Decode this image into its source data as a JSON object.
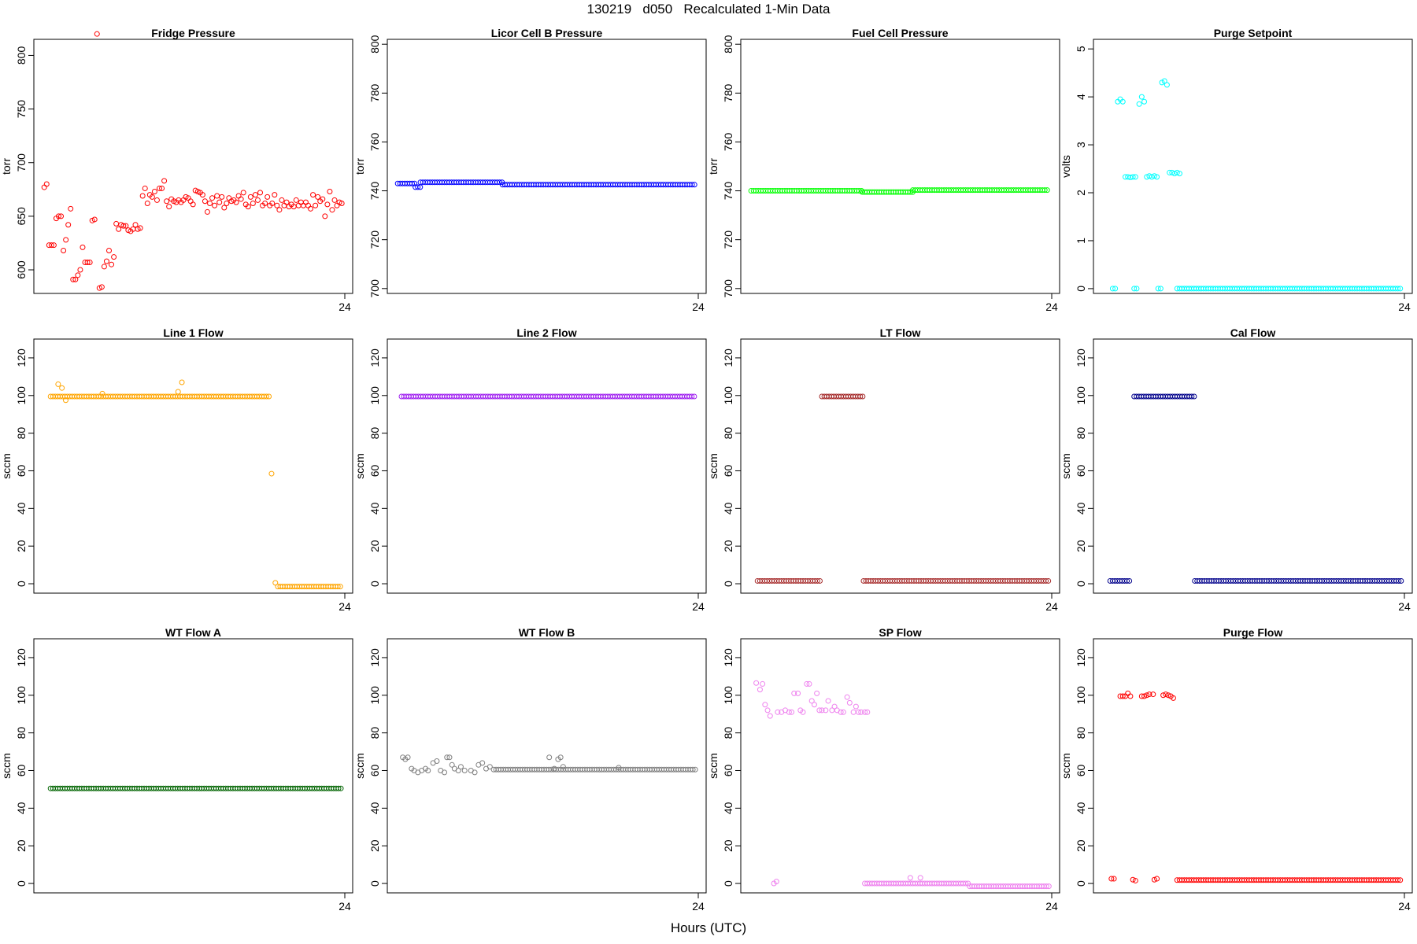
{
  "header": {
    "title": "130219   d050   Recalculated 1-Min Data",
    "xlabel": "Hours (UTC)"
  },
  "chart_data": [
    {
      "type": "scatter",
      "title": "Fridge Pressure",
      "ylabel": "torr",
      "ylim": [
        578,
        815
      ],
      "yticks": [
        600,
        650,
        700,
        750,
        800
      ],
      "xlim": [
        0,
        24
      ],
      "xticks": [
        "24"
      ],
      "color": "#ff0000",
      "x_step": 0.2,
      "x_start": 0.2,
      "values": [
        677,
        680,
        623,
        623,
        623,
        648,
        650,
        650,
        618,
        628,
        642,
        657,
        591,
        591,
        595,
        600,
        621,
        607,
        607,
        607,
        646,
        647,
        820,
        583,
        584,
        603,
        608,
        618,
        605,
        612,
        643,
        638,
        642,
        641,
        641,
        637,
        636,
        638,
        642,
        638,
        639,
        669,
        676,
        662,
        670,
        668,
        673,
        665,
        676,
        676,
        683,
        664,
        659,
        666,
        664,
        663,
        665,
        663,
        665,
        668,
        667,
        664,
        661,
        674,
        673,
        672,
        670,
        664,
        654,
        662,
        667,
        660,
        669,
        663,
        668,
        658,
        662,
        667,
        664,
        665,
        663,
        669,
        666,
        672,
        661,
        659,
        668,
        662,
        670,
        665,
        672,
        660,
        662,
        668,
        660,
        662,
        670,
        660,
        656,
        665,
        660,
        663,
        659,
        661,
        659,
        665,
        660,
        663,
        660,
        663,
        660,
        657,
        670,
        660,
        668,
        664,
        666,
        650,
        661,
        673,
        656,
        665,
        660,
        663,
        662
      ],
      "series_name": ""
    },
    {
      "type": "scatter",
      "title": "Licor Cell B Pressure",
      "ylabel": "torr",
      "ylim": [
        698,
        802
      ],
      "yticks": [
        700,
        720,
        740,
        760,
        780,
        800
      ],
      "xlim": [
        0,
        24
      ],
      "xticks": [
        "24"
      ],
      "color": "#0000ff",
      "x_step": 0.2,
      "x_start": 0.2,
      "segments": [
        [
          0.2,
          1.6,
          743
        ],
        [
          1.6,
          2.0,
          741.5
        ],
        [
          2.0,
          8.5,
          743.5
        ],
        [
          8.5,
          23.8,
          742.5
        ]
      ]
    },
    {
      "type": "scatter",
      "title": "Fuel Cell Pressure",
      "ylabel": "torr",
      "ylim": [
        698,
        802
      ],
      "yticks": [
        700,
        720,
        740,
        760,
        780,
        800
      ],
      "xlim": [
        0,
        24
      ],
      "xticks": [
        "24"
      ],
      "color": "#00ff00",
      "x_step": 0.2,
      "x_start": 0.2,
      "segments": [
        [
          0.2,
          9.0,
          740
        ],
        [
          9.0,
          13.0,
          739.5
        ],
        [
          13.0,
          23.8,
          740.3
        ]
      ]
    },
    {
      "type": "scatter",
      "title": "Purge Setpoint",
      "ylabel": "volts",
      "ylim": [
        -0.1,
        5.2
      ],
      "yticks": [
        0,
        1,
        2,
        3,
        4,
        5
      ],
      "xlim": [
        0,
        24
      ],
      "xticks": [
        "24"
      ],
      "color": "#00ffff",
      "points": [
        [
          0.9,
          0
        ],
        [
          1.1,
          0
        ],
        [
          1.3,
          3.9
        ],
        [
          1.5,
          3.95
        ],
        [
          1.7,
          3.9
        ],
        [
          1.9,
          2.33
        ],
        [
          2.1,
          2.33
        ],
        [
          2.3,
          2.32
        ],
        [
          2.5,
          2.33
        ],
        [
          2.7,
          2.33
        ],
        [
          2.6,
          0
        ],
        [
          2.8,
          0
        ],
        [
          3.0,
          3.85
        ],
        [
          3.2,
          4.0
        ],
        [
          3.4,
          3.9
        ],
        [
          3.6,
          2.33
        ],
        [
          3.8,
          2.35
        ],
        [
          4.0,
          2.33
        ],
        [
          4.2,
          2.35
        ],
        [
          4.4,
          2.33
        ],
        [
          4.5,
          0
        ],
        [
          4.7,
          0
        ],
        [
          4.8,
          4.3
        ],
        [
          5.0,
          4.33
        ],
        [
          5.2,
          4.25
        ],
        [
          5.4,
          2.42
        ],
        [
          5.6,
          2.42
        ],
        [
          5.8,
          2.4
        ],
        [
          6.0,
          2.42
        ],
        [
          6.2,
          2.4
        ]
      ],
      "segments": [
        [
          6.0,
          23.8,
          0
        ]
      ]
    },
    {
      "type": "scatter",
      "title": "Line 1 Flow",
      "ylabel": "sccm",
      "ylim": [
        -5,
        130
      ],
      "yticks": [
        0,
        20,
        40,
        60,
        80,
        100,
        120
      ],
      "xlim": [
        0,
        24
      ],
      "xticks": [
        "24"
      ],
      "color": "#ffa500",
      "points": [
        [
          1.3,
          106
        ],
        [
          1.6,
          104
        ],
        [
          1.9,
          97.5
        ],
        [
          4.8,
          101
        ],
        [
          10.8,
          102
        ],
        [
          11.1,
          107
        ],
        [
          18.2,
          58.5
        ],
        [
          18.5,
          0.5
        ]
      ],
      "segments": [
        [
          0.7,
          18.0,
          99.5
        ],
        [
          18.7,
          23.8,
          -1.5
        ]
      ]
    },
    {
      "type": "scatter",
      "title": "Line 2 Flow",
      "ylabel": "sccm",
      "ylim": [
        -5,
        130
      ],
      "yticks": [
        0,
        20,
        40,
        60,
        80,
        100,
        120
      ],
      "xlim": [
        0,
        24
      ],
      "xticks": [
        "24"
      ],
      "color": "#a020f0",
      "segments": [
        [
          0.5,
          23.8,
          99.5
        ]
      ]
    },
    {
      "type": "scatter",
      "title": "LT Flow",
      "ylabel": "sccm",
      "ylim": [
        -5,
        130
      ],
      "yticks": [
        0,
        20,
        40,
        60,
        80,
        100,
        120
      ],
      "xlim": [
        0,
        24
      ],
      "xticks": [
        "24"
      ],
      "color": "#a52a2a",
      "segments": [
        [
          0.7,
          5.8,
          1.5
        ],
        [
          5.8,
          9.2,
          99.5
        ],
        [
          9.1,
          23.8,
          1.5
        ]
      ]
    },
    {
      "type": "scatter",
      "title": "Cal Flow",
      "ylabel": "sccm",
      "ylim": [
        -5,
        130
      ],
      "yticks": [
        0,
        20,
        40,
        60,
        80,
        100,
        120
      ],
      "xlim": [
        0,
        24
      ],
      "xticks": [
        "24"
      ],
      "color": "#00008b",
      "segments": [
        [
          0.7,
          2.4,
          1.5
        ],
        [
          2.6,
          7.4,
          99.5
        ],
        [
          7.4,
          23.8,
          1.5
        ]
      ]
    },
    {
      "type": "scatter",
      "title": "WT Flow A",
      "ylabel": "sccm",
      "ylim": [
        -5,
        130
      ],
      "yticks": [
        0,
        20,
        40,
        60,
        80,
        100,
        120
      ],
      "xlim": [
        0,
        24
      ],
      "xticks": [
        "24"
      ],
      "color": "#006400",
      "segments": [
        [
          0.7,
          23.8,
          50.5
        ]
      ]
    },
    {
      "type": "scatter",
      "title": "WT Flow B",
      "ylabel": "sccm",
      "ylim": [
        -5,
        130
      ],
      "yticks": [
        0,
        20,
        40,
        60,
        80,
        100,
        120
      ],
      "xlim": [
        0,
        24
      ],
      "xticks": [
        "24"
      ],
      "color": "#808080",
      "points": [
        [
          0.6,
          67
        ],
        [
          0.8,
          66
        ],
        [
          1.0,
          67
        ],
        [
          1.3,
          61
        ],
        [
          1.5,
          60
        ],
        [
          1.8,
          59
        ],
        [
          2.1,
          60
        ],
        [
          2.4,
          61
        ],
        [
          2.6,
          60
        ],
        [
          3.0,
          64
        ],
        [
          3.3,
          65
        ],
        [
          3.6,
          60
        ],
        [
          3.9,
          59
        ],
        [
          4.1,
          67
        ],
        [
          4.3,
          67
        ],
        [
          4.5,
          63
        ],
        [
          4.7,
          61
        ],
        [
          5.0,
          60
        ],
        [
          5.2,
          62
        ],
        [
          5.5,
          60
        ],
        [
          6.0,
          60
        ],
        [
          6.3,
          59
        ],
        [
          6.6,
          63
        ],
        [
          6.9,
          64
        ],
        [
          7.2,
          61
        ],
        [
          7.5,
          62
        ],
        [
          12.2,
          67
        ],
        [
          12.6,
          61
        ],
        [
          12.9,
          66
        ],
        [
          13.1,
          67
        ],
        [
          13.3,
          62
        ],
        [
          17.7,
          61.5
        ]
      ],
      "segments": [
        [
          7.8,
          23.8,
          60.5
        ]
      ]
    },
    {
      "type": "scatter",
      "title": "SP Flow",
      "ylabel": "sccm",
      "ylim": [
        -5,
        130
      ],
      "yticks": [
        0,
        20,
        40,
        60,
        80,
        100,
        120
      ],
      "xlim": [
        0,
        24
      ],
      "xticks": [
        "24"
      ],
      "color": "#ee82ee",
      "points": [
        [
          0.6,
          106.5
        ],
        [
          0.9,
          103
        ],
        [
          1.1,
          106
        ],
        [
          1.3,
          95
        ],
        [
          1.5,
          92
        ],
        [
          1.7,
          89
        ],
        [
          2.0,
          0
        ],
        [
          2.2,
          1
        ],
        [
          2.3,
          91
        ],
        [
          2.6,
          91
        ],
        [
          2.9,
          92
        ],
        [
          3.2,
          91
        ],
        [
          3.4,
          91
        ],
        [
          3.6,
          101
        ],
        [
          3.9,
          101
        ],
        [
          4.1,
          92
        ],
        [
          4.3,
          91
        ],
        [
          4.6,
          106
        ],
        [
          4.8,
          106
        ],
        [
          5.0,
          97
        ],
        [
          5.2,
          95
        ],
        [
          5.4,
          101
        ],
        [
          5.6,
          92
        ],
        [
          5.8,
          92
        ],
        [
          6.1,
          92
        ],
        [
          6.3,
          97
        ],
        [
          6.6,
          92
        ],
        [
          6.8,
          94
        ],
        [
          7.0,
          92
        ],
        [
          7.3,
          91
        ],
        [
          7.5,
          91
        ],
        [
          7.8,
          99
        ],
        [
          8.0,
          96
        ],
        [
          8.3,
          91
        ],
        [
          8.5,
          94
        ],
        [
          8.7,
          91
        ],
        [
          8.9,
          91
        ],
        [
          9.2,
          91
        ],
        [
          9.4,
          91
        ],
        [
          12.8,
          3
        ],
        [
          13.6,
          3
        ]
      ],
      "segments": [
        [
          9.2,
          17.5,
          0
        ],
        [
          17.5,
          23.8,
          -1.5
        ]
      ]
    },
    {
      "type": "scatter",
      "title": "Purge Flow",
      "ylabel": "sccm",
      "ylim": [
        -5,
        130
      ],
      "yticks": [
        0,
        20,
        40,
        60,
        80,
        100,
        120
      ],
      "xlim": [
        0,
        24
      ],
      "xticks": [
        "24"
      ],
      "color": "#ff0000",
      "points": [
        [
          0.8,
          2.5
        ],
        [
          1.0,
          2.5
        ],
        [
          1.5,
          99.5
        ],
        [
          1.7,
          99.5
        ],
        [
          1.9,
          99.5
        ],
        [
          2.1,
          101
        ],
        [
          2.3,
          99.5
        ],
        [
          2.5,
          2
        ],
        [
          2.7,
          1.5
        ],
        [
          3.2,
          99.5
        ],
        [
          3.4,
          99.5
        ],
        [
          3.6,
          100
        ],
        [
          3.8,
          100.5
        ],
        [
          4.1,
          100.5
        ],
        [
          4.2,
          2
        ],
        [
          4.4,
          2.5
        ],
        [
          4.9,
          100
        ],
        [
          5.1,
          100.5
        ],
        [
          5.3,
          100
        ],
        [
          5.5,
          99.5
        ],
        [
          5.7,
          98.5
        ]
      ],
      "segments": [
        [
          6.0,
          23.8,
          1.8
        ]
      ]
    }
  ]
}
